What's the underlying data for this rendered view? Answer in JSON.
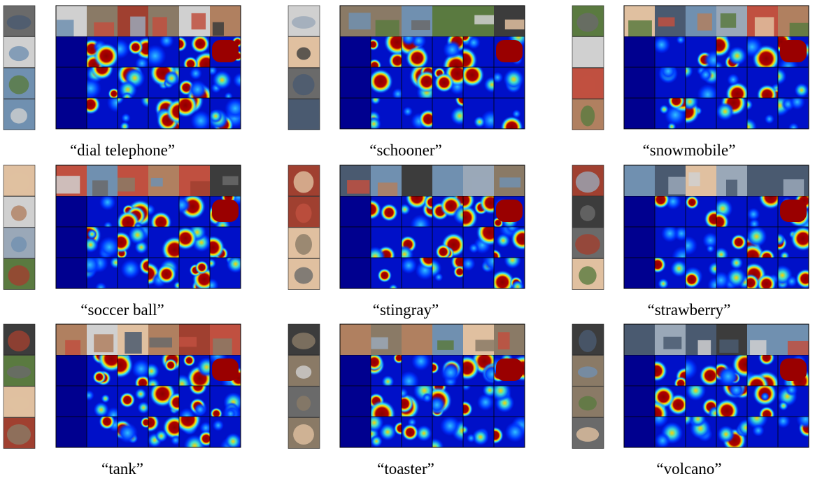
{
  "panels": [
    {
      "caption": "“dial telephone”"
    },
    {
      "caption": "“schooner”"
    },
    {
      "caption": "“snowmobile”"
    },
    {
      "caption": "“soccer ball”"
    },
    {
      "caption": "“stingray”"
    },
    {
      "caption": "“strawberry”"
    },
    {
      "caption": "“tank”"
    },
    {
      "caption": "“toaster”"
    },
    {
      "caption": "“volcano”"
    }
  ]
}
